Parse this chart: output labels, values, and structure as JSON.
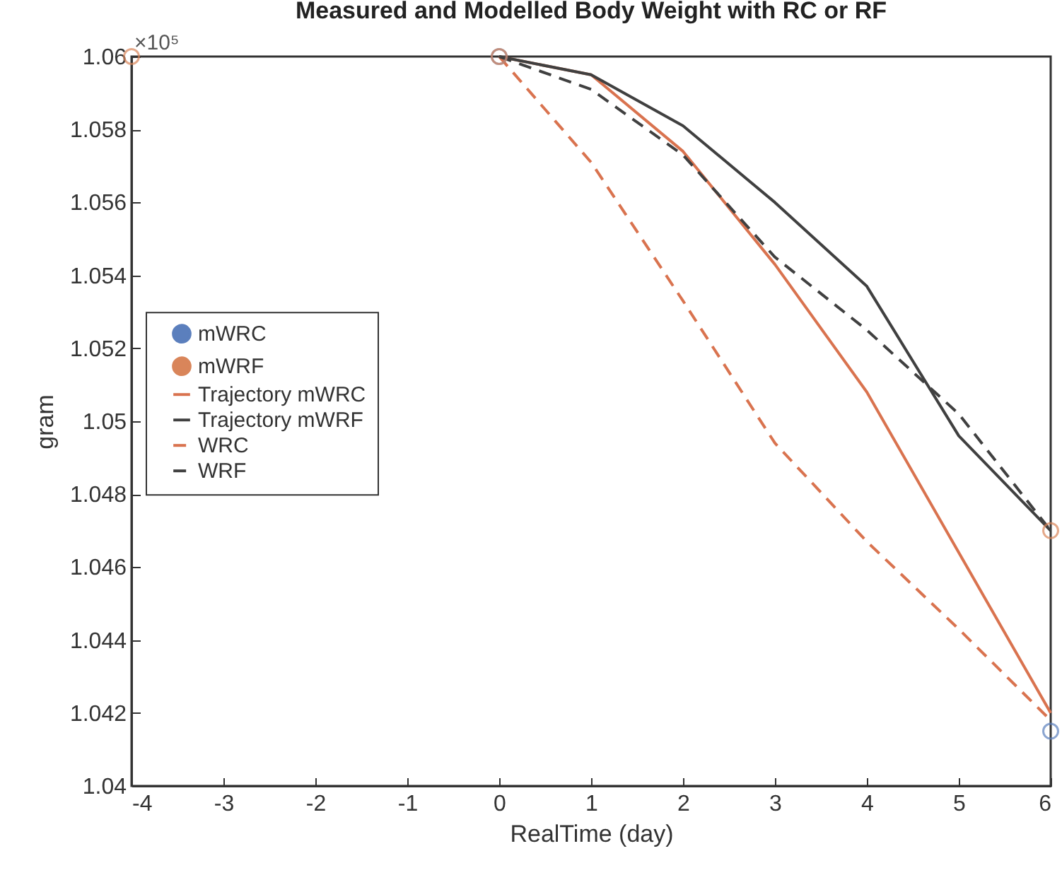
{
  "chart_data": {
    "type": "line",
    "title": "Measured and Modelled Body Weight with RC or RF",
    "xlabel": "RealTime (day)",
    "ylabel": "gram",
    "annotations": [
      "×10⁵"
    ],
    "xlim": [
      -4,
      6
    ],
    "xticks": [
      -4,
      -3,
      -2,
      -1,
      0,
      1,
      2,
      3,
      4,
      5,
      6
    ],
    "ylim": [
      1.04,
      1.06
    ],
    "yticks": [
      1.04,
      1.042,
      1.044,
      1.046,
      1.048,
      1.05,
      1.052,
      1.054,
      1.056,
      1.058,
      1.06
    ],
    "grid": false,
    "legend": "left",
    "series": [
      {
        "name": "mWRC",
        "type": "scatter",
        "marker": "circle",
        "color": "#5b7fbd",
        "x": [
          0,
          6
        ],
        "values": [
          1.06,
          1.0415
        ]
      },
      {
        "name": "mWRF",
        "type": "scatter",
        "marker": "circle",
        "color": "#d9855a",
        "x": [
          -4,
          0,
          6
        ],
        "values": [
          1.06,
          1.06,
          1.047
        ]
      },
      {
        "name": "Trajectory mWRC",
        "line_style": "solid",
        "color": "#d9734f",
        "x": [
          0,
          1,
          2,
          3,
          4,
          5,
          6
        ],
        "values": [
          1.06,
          1.0595,
          1.0574,
          1.0543,
          1.0508,
          1.0464,
          1.042
        ]
      },
      {
        "name": "Trajectory mWRF",
        "line_style": "solid",
        "color": "#404040",
        "x": [
          0,
          1,
          2,
          3,
          4,
          5,
          6
        ],
        "values": [
          1.06,
          1.0595,
          1.0581,
          1.056,
          1.0537,
          1.0496,
          1.047
        ]
      },
      {
        "name": "WRC",
        "line_style": "dashed",
        "color": "#d9734f",
        "x": [
          0,
          1,
          2,
          3,
          4,
          5,
          6
        ],
        "values": [
          1.06,
          1.0571,
          1.0533,
          1.0494,
          1.0467,
          1.0443,
          1.0418
        ]
      },
      {
        "name": "WRF",
        "line_style": "dashed",
        "color": "#404040",
        "x": [
          0,
          1,
          2,
          3,
          4,
          5,
          6
        ],
        "values": [
          1.06,
          1.0591,
          1.0573,
          1.0545,
          1.0525,
          1.0502,
          1.047
        ]
      }
    ]
  }
}
